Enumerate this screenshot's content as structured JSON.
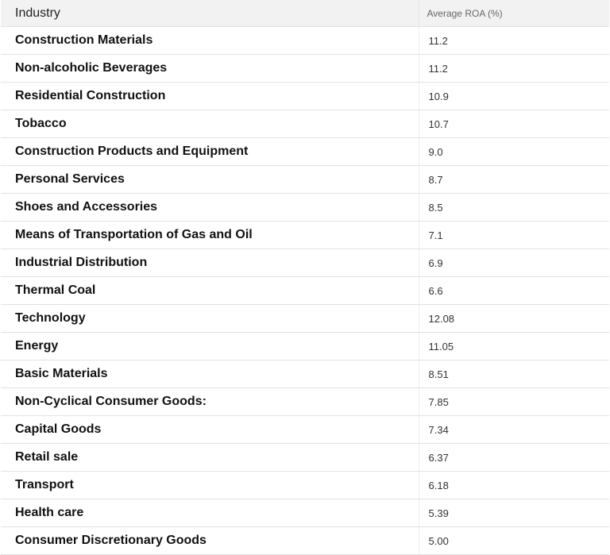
{
  "table": {
    "header": [
      "Industry",
      "Average ROA (%)"
    ],
    "rows": [
      [
        "Construction Materials",
        "11.2"
      ],
      [
        "Non-alcoholic Beverages",
        "11.2"
      ],
      [
        "Residential Construction",
        "10.9"
      ],
      [
        "Tobacco",
        "10.7"
      ],
      [
        "Construction Products and Equipment",
        "9.0"
      ],
      [
        "Personal Services",
        "8.7"
      ],
      [
        "Shoes and Accessories",
        "8.5"
      ],
      [
        "Means of Transportation of Gas and Oil",
        "7.1"
      ],
      [
        "Industrial Distribution",
        "6.9"
      ],
      [
        "Thermal Coal",
        "6.6"
      ],
      [
        "Technology",
        "12.08"
      ],
      [
        "Energy",
        "11.05"
      ],
      [
        "Basic Materials",
        "8.51"
      ],
      [
        "Non-Cyclical Consumer Goods:",
        "7.85"
      ],
      [
        "Capital Goods",
        "7.34"
      ],
      [
        "Retail sale",
        "6.37"
      ],
      [
        "Transport",
        "6.18"
      ],
      [
        "Health care",
        "5.39"
      ],
      [
        "Consumer Discretionary Goods",
        "5.00"
      ]
    ]
  }
}
